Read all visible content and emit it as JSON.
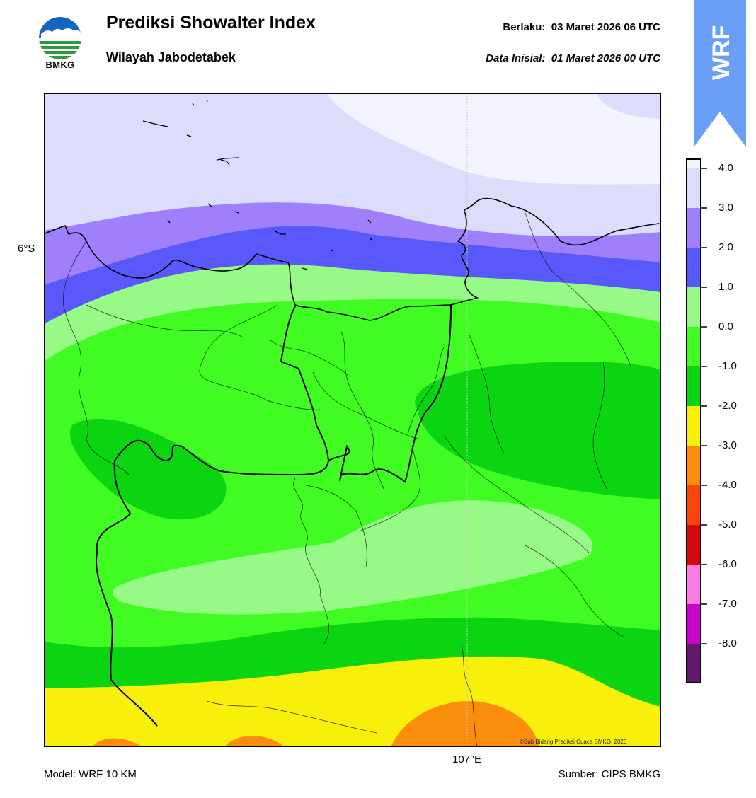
{
  "header": {
    "title": "Prediksi Showalter Index",
    "subtitle": "Wilayah Jabodetabek",
    "valid_label": "Berlaku:",
    "valid_time": "03 Maret 2026 06 UTC",
    "init_label": "Data Inisial:",
    "init_time": "01 Maret 2026 00 UTC"
  },
  "logo": {
    "text": "BMKG",
    "badge_text": "WRF",
    "badge_color": "#6a9ff8"
  },
  "map": {
    "lat_label": "6°S",
    "lon_label": "107°E",
    "copyright": "©Sub Bidang Prediksi Cuaca BMKG, 2026"
  },
  "colorbar": {
    "ticks": [
      "4.0",
      "3.0",
      "2.0",
      "1.0",
      "0.0",
      "-1.0",
      "-2.0",
      "-3.0",
      "-4.0",
      "-5.0",
      "-6.0",
      "-7.0",
      "-8.0"
    ],
    "colors": [
      "#f3f3fd",
      "#dcdcfc",
      "#9f7ffb",
      "#5959fb",
      "#98fa86",
      "#40fc22",
      "#0bd411",
      "#f8f00a",
      "#fa8d0c",
      "#fb450a",
      "#d5080b",
      "#fc7ce6",
      "#c904c9",
      "#64186d"
    ]
  },
  "footer": {
    "model": "Model: WRF 10 KM",
    "source": "Sumber: CIPS BMKG"
  }
}
